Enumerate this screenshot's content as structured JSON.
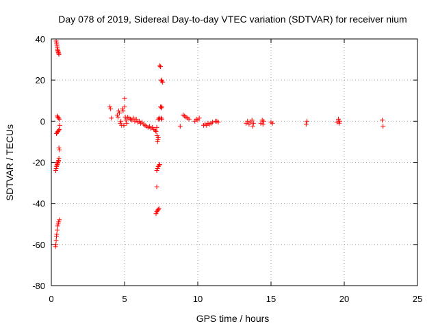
{
  "chart_data": {
    "type": "scatter",
    "title": "Day 078 of 2019, Sidereal Day-to-day VTEC variation (SDTVAR) for receiver nium",
    "xlabel": "GPS time / hours",
    "ylabel": "SDTVAR / TECUs",
    "xlim": [
      0,
      25
    ],
    "ylim": [
      -80,
      40
    ],
    "xticks": [
      0,
      5,
      10,
      15,
      20,
      25
    ],
    "yticks": [
      -80,
      -60,
      -40,
      -20,
      0,
      20,
      40
    ],
    "xtick_labels": [
      "0",
      "5",
      "10",
      "15",
      "20",
      "25"
    ],
    "ytick_labels": [
      "-80",
      "-60",
      "-40",
      "-20",
      "0",
      "20",
      "40"
    ],
    "grid": true,
    "marker": "+",
    "color": "#ff0000",
    "series": [
      {
        "name": "SDTVAR",
        "points": [
          [
            0.33,
            39
          ],
          [
            0.36,
            38
          ],
          [
            0.38,
            37
          ],
          [
            0.4,
            36
          ],
          [
            0.42,
            35
          ],
          [
            0.44,
            34.5
          ],
          [
            0.46,
            34
          ],
          [
            0.48,
            33.5
          ],
          [
            0.5,
            33
          ],
          [
            0.52,
            32.5
          ],
          [
            0.4,
            2.5
          ],
          [
            0.45,
            2
          ],
          [
            0.5,
            1.5
          ],
          [
            0.55,
            1
          ],
          [
            0.58,
            -2
          ],
          [
            0.35,
            -6
          ],
          [
            0.4,
            -5.5
          ],
          [
            0.45,
            -5
          ],
          [
            0.5,
            -4.5
          ],
          [
            0.55,
            -4
          ],
          [
            0.52,
            -13
          ],
          [
            0.56,
            -14
          ],
          [
            0.3,
            -24
          ],
          [
            0.33,
            -23
          ],
          [
            0.36,
            -22
          ],
          [
            0.38,
            -21.5
          ],
          [
            0.4,
            -21
          ],
          [
            0.42,
            -20.5
          ],
          [
            0.45,
            -20
          ],
          [
            0.48,
            -19.5
          ],
          [
            0.5,
            -19
          ],
          [
            0.52,
            -18
          ],
          [
            0.28,
            -61
          ],
          [
            0.31,
            -60
          ],
          [
            0.33,
            -58
          ],
          [
            0.35,
            -56
          ],
          [
            0.37,
            -55
          ],
          [
            0.4,
            -53
          ],
          [
            0.43,
            -51
          ],
          [
            0.47,
            -50
          ],
          [
            0.5,
            -49
          ],
          [
            0.55,
            -48
          ],
          [
            4.0,
            7
          ],
          [
            4.05,
            6
          ],
          [
            4.1,
            1.5
          ],
          [
            4.5,
            3
          ],
          [
            4.55,
            2
          ],
          [
            4.6,
            5
          ],
          [
            4.65,
            4
          ],
          [
            4.7,
            -1
          ],
          [
            4.75,
            0
          ],
          [
            4.8,
            -2
          ],
          [
            4.85,
            6
          ],
          [
            4.9,
            5
          ],
          [
            4.95,
            -2
          ],
          [
            5.0,
            7
          ],
          [
            5.0,
            11
          ],
          [
            5.05,
            2
          ],
          [
            5.1,
            0.5
          ],
          [
            5.15,
            -1
          ],
          [
            5.2,
            2
          ],
          [
            5.3,
            1.5
          ],
          [
            5.4,
            1
          ],
          [
            5.5,
            0.5
          ],
          [
            5.6,
            1.5
          ],
          [
            5.7,
            0
          ],
          [
            5.8,
            1
          ],
          [
            5.9,
            -0.5
          ],
          [
            6.0,
            0
          ],
          [
            6.1,
            -1
          ],
          [
            6.2,
            -0.5
          ],
          [
            6.3,
            -1.5
          ],
          [
            6.4,
            -2
          ],
          [
            6.5,
            -2.5
          ],
          [
            6.6,
            -3
          ],
          [
            6.7,
            -2.5
          ],
          [
            6.8,
            -3.5
          ],
          [
            6.9,
            -3
          ],
          [
            7.0,
            -4
          ],
          [
            7.1,
            -4.5
          ],
          [
            7.15,
            -5
          ],
          [
            7.2,
            -3
          ],
          [
            7.22,
            -7
          ],
          [
            7.25,
            -10
          ],
          [
            7.28,
            -9
          ],
          [
            7.3,
            -8
          ],
          [
            7.2,
            -32
          ],
          [
            7.15,
            -45
          ],
          [
            7.2,
            -44
          ],
          [
            7.25,
            -43.5
          ],
          [
            7.3,
            -43
          ],
          [
            7.35,
            -42.5
          ],
          [
            7.2,
            -24
          ],
          [
            7.25,
            -23
          ],
          [
            7.3,
            -22
          ],
          [
            7.35,
            -21.5
          ],
          [
            7.4,
            -21
          ],
          [
            7.3,
            1
          ],
          [
            7.35,
            1.5
          ],
          [
            7.4,
            1
          ],
          [
            7.5,
            1.5
          ],
          [
            7.55,
            1
          ],
          [
            7.45,
            7
          ],
          [
            7.5,
            6.5
          ],
          [
            7.55,
            7
          ],
          [
            7.4,
            27
          ],
          [
            7.45,
            26.5
          ],
          [
            7.5,
            20
          ],
          [
            7.55,
            19.5
          ],
          [
            7.6,
            19
          ],
          [
            8.8,
            -2.5
          ],
          [
            9.0,
            3
          ],
          [
            9.1,
            2.5
          ],
          [
            9.2,
            2
          ],
          [
            9.3,
            1.5
          ],
          [
            9.4,
            1
          ],
          [
            9.8,
            0
          ],
          [
            9.9,
            1
          ],
          [
            10.0,
            0.5
          ],
          [
            10.1,
            1.5
          ],
          [
            10.4,
            -2
          ],
          [
            10.5,
            -1.5
          ],
          [
            10.6,
            -2
          ],
          [
            10.7,
            -1
          ],
          [
            10.8,
            -1.5
          ],
          [
            10.9,
            -1
          ],
          [
            11.0,
            -0.5
          ],
          [
            11.2,
            0
          ],
          [
            11.3,
            0
          ],
          [
            11.4,
            -0.5
          ],
          [
            13.3,
            -1
          ],
          [
            13.4,
            0
          ],
          [
            13.5,
            -1.5
          ],
          [
            13.6,
            -0.5
          ],
          [
            13.7,
            0.5
          ],
          [
            13.75,
            -2.5
          ],
          [
            13.8,
            -1
          ],
          [
            14.3,
            -1
          ],
          [
            14.4,
            0.5
          ],
          [
            14.5,
            0
          ],
          [
            14.45,
            -1.5
          ],
          [
            15.0,
            -0.5
          ],
          [
            15.1,
            -1
          ],
          [
            17.4,
            -1.5
          ],
          [
            17.45,
            0
          ],
          [
            19.5,
            -0.5
          ],
          [
            19.6,
            1
          ],
          [
            19.7,
            0
          ],
          [
            19.65,
            -1
          ],
          [
            22.6,
            0.5
          ],
          [
            22.65,
            -2.5
          ]
        ]
      }
    ]
  }
}
